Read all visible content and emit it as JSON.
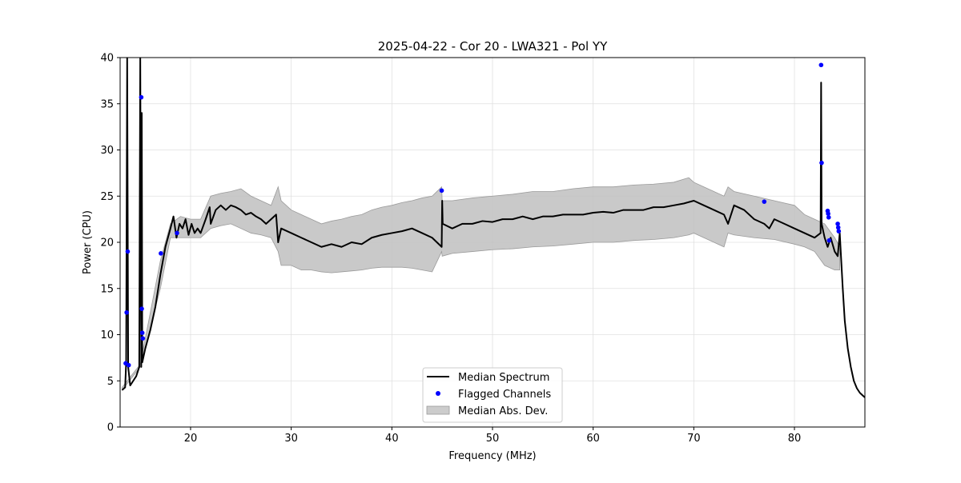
{
  "chart_data": {
    "type": "line",
    "title": "2025-04-22 - Cor 20 - LWA321 - Pol YY",
    "xlabel": "Frequency (MHz)",
    "ylabel": "Power (CPU)",
    "xlim": [
      13.0,
      87.0
    ],
    "ylim": [
      0,
      40
    ],
    "xticks": [
      20,
      30,
      40,
      50,
      60,
      70,
      80
    ],
    "yticks": [
      0,
      5,
      10,
      15,
      20,
      25,
      30,
      35,
      40
    ],
    "grid": true,
    "legend_location": "lower center",
    "legend": [
      {
        "name": "Median Spectrum",
        "type": "line",
        "color": "#000000"
      },
      {
        "name": "Flagged Channels",
        "type": "marker",
        "color": "#0000ff"
      },
      {
        "name": "Median Abs. Dev.",
        "type": "band",
        "color": "#bfbfbf"
      }
    ],
    "series": [
      {
        "name": "Median Spectrum",
        "type": "line",
        "color": "#000000",
        "x": [
          13.2,
          13.5,
          13.6,
          13.7,
          13.8,
          13.9,
          14.0,
          14.3,
          14.6,
          14.9,
          15.0,
          15.1,
          15.15,
          15.2,
          15.3,
          15.5,
          16.0,
          16.5,
          17.0,
          17.5,
          18.0,
          18.3,
          18.6,
          18.9,
          19.2,
          19.5,
          19.8,
          20.1,
          20.4,
          20.7,
          21.0,
          21.5,
          21.9,
          22.0,
          22.5,
          23.0,
          23.5,
          24.0,
          24.5,
          25.0,
          25.5,
          26.0,
          26.5,
          27.0,
          27.5,
          28.0,
          28.5,
          28.7,
          29.0,
          30.0,
          31.0,
          32.0,
          33.0,
          34.0,
          35.0,
          36.0,
          37.0,
          38.0,
          39.0,
          40.0,
          41.0,
          42.0,
          43.0,
          44.0,
          44.95,
          45.0,
          45.05,
          46.0,
          47.0,
          48.0,
          49.0,
          50.0,
          51.0,
          52.0,
          53.0,
          54.0,
          55.0,
          56.0,
          57.0,
          58.0,
          59.0,
          60.0,
          61.0,
          62.0,
          63.0,
          64.0,
          65.0,
          66.0,
          67.0,
          68.0,
          69.0,
          70.0,
          71.0,
          72.0,
          73.0,
          73.4,
          74.0,
          75.0,
          76.0,
          77.0,
          77.5,
          78.0,
          79.0,
          80.0,
          81.0,
          82.0,
          82.6,
          82.65,
          82.7,
          83.0,
          83.3,
          83.6,
          84.0,
          84.3,
          84.5,
          84.8,
          85.0,
          85.3,
          85.6,
          85.9,
          86.2,
          86.5,
          86.8,
          87.0
        ],
        "y": [
          4.0,
          4.3,
          7.0,
          40.0,
          6.5,
          5.5,
          4.5,
          5.0,
          5.5,
          6.5,
          40.0,
          6.5,
          34.0,
          7.0,
          7.5,
          8.5,
          10.5,
          13.0,
          16.5,
          19.5,
          21.5,
          22.8,
          20.5,
          22.0,
          21.5,
          22.5,
          20.8,
          22.0,
          21.0,
          21.5,
          21.0,
          22.5,
          23.8,
          22.0,
          23.5,
          24.0,
          23.5,
          24.0,
          23.8,
          23.5,
          23.0,
          23.2,
          22.8,
          22.5,
          22.0,
          22.5,
          23.0,
          20.0,
          21.5,
          21.0,
          20.5,
          20.0,
          19.5,
          19.8,
          19.5,
          20.0,
          19.8,
          20.5,
          20.8,
          21.0,
          21.2,
          21.5,
          21.0,
          20.5,
          19.5,
          24.5,
          22.0,
          21.5,
          22.0,
          22.0,
          22.3,
          22.2,
          22.5,
          22.5,
          22.8,
          22.5,
          22.8,
          22.8,
          23.0,
          23.0,
          23.0,
          23.2,
          23.3,
          23.2,
          23.5,
          23.5,
          23.5,
          23.8,
          23.8,
          24.0,
          24.2,
          24.5,
          24.0,
          23.5,
          23.0,
          22.0,
          24.0,
          23.5,
          22.5,
          22.0,
          21.5,
          22.5,
          22.0,
          21.5,
          21.0,
          20.5,
          21.0,
          37.3,
          22.0,
          20.5,
          19.5,
          20.5,
          19.0,
          18.5,
          21.0,
          15.0,
          11.5,
          8.5,
          6.5,
          5.0,
          4.2,
          3.7,
          3.4,
          3.2
        ]
      },
      {
        "name": "Median Abs. Dev.",
        "type": "band",
        "color": "#bfbfbf",
        "x": [
          13.2,
          15.0,
          17.0,
          18.0,
          19.0,
          20.0,
          21.0,
          22.0,
          23.0,
          24.0,
          25.0,
          26.0,
          27.0,
          28.0,
          28.7,
          29.0,
          30.0,
          31.0,
          32.0,
          33.0,
          34.0,
          35.0,
          36.0,
          37.0,
          38.0,
          39.0,
          40.0,
          41.0,
          42.0,
          43.0,
          44.0,
          44.95,
          45.0,
          46.0,
          48.0,
          50.0,
          52.0,
          54.0,
          56.0,
          58.0,
          60.0,
          62.0,
          64.0,
          66.0,
          68.0,
          69.5,
          70.0,
          71.0,
          72.0,
          73.0,
          73.4,
          74.0,
          76.0,
          78.0,
          80.0,
          81.0,
          82.0,
          83.0,
          84.0,
          84.5
        ],
        "upper": [
          4.3,
          6.8,
          18.0,
          22.0,
          22.8,
          22.5,
          22.5,
          25.0,
          25.3,
          25.5,
          25.8,
          25.0,
          24.5,
          24.0,
          26.0,
          24.5,
          23.5,
          23.0,
          22.5,
          22.0,
          22.3,
          22.5,
          22.8,
          23.0,
          23.5,
          23.8,
          24.0,
          24.3,
          24.5,
          24.8,
          25.0,
          26.0,
          24.5,
          24.5,
          24.8,
          25.0,
          25.2,
          25.5,
          25.5,
          25.8,
          26.0,
          26.0,
          26.2,
          26.3,
          26.5,
          27.0,
          26.5,
          26.0,
          25.5,
          25.0,
          26.0,
          25.5,
          25.0,
          24.5,
          24.0,
          23.0,
          22.5,
          22.0,
          20.5,
          19.5
        ],
        "lower": [
          4.0,
          6.5,
          15.0,
          20.5,
          20.5,
          20.5,
          20.5,
          21.5,
          21.8,
          22.0,
          21.5,
          21.0,
          20.8,
          20.5,
          19.0,
          17.5,
          17.5,
          17.0,
          17.0,
          16.8,
          16.7,
          16.8,
          16.9,
          17.0,
          17.2,
          17.3,
          17.3,
          17.3,
          17.2,
          17.0,
          16.8,
          19.0,
          18.5,
          18.8,
          19.0,
          19.2,
          19.3,
          19.5,
          19.6,
          19.8,
          20.0,
          20.0,
          20.2,
          20.3,
          20.5,
          20.8,
          21.0,
          20.5,
          20.0,
          19.5,
          21.0,
          20.8,
          20.5,
          20.3,
          19.8,
          19.5,
          19.0,
          17.5,
          17.0,
          17.0
        ]
      },
      {
        "name": "Flagged Channels",
        "type": "scatter",
        "color": "#0000ff",
        "x": [
          13.55,
          13.65,
          13.75,
          13.85,
          15.1,
          15.15,
          15.2,
          15.25,
          17.05,
          18.65,
          44.95,
          77.0,
          82.65,
          82.7,
          83.3,
          83.35,
          83.4,
          83.45,
          84.3,
          84.35,
          84.4
        ],
        "y": [
          6.9,
          12.4,
          19.0,
          6.7,
          35.7,
          12.8,
          10.2,
          9.6,
          18.8,
          21.0,
          25.6,
          24.4,
          39.2,
          28.6,
          23.4,
          23.1,
          22.7,
          20.2,
          22.0,
          21.6,
          21.2
        ]
      }
    ]
  }
}
